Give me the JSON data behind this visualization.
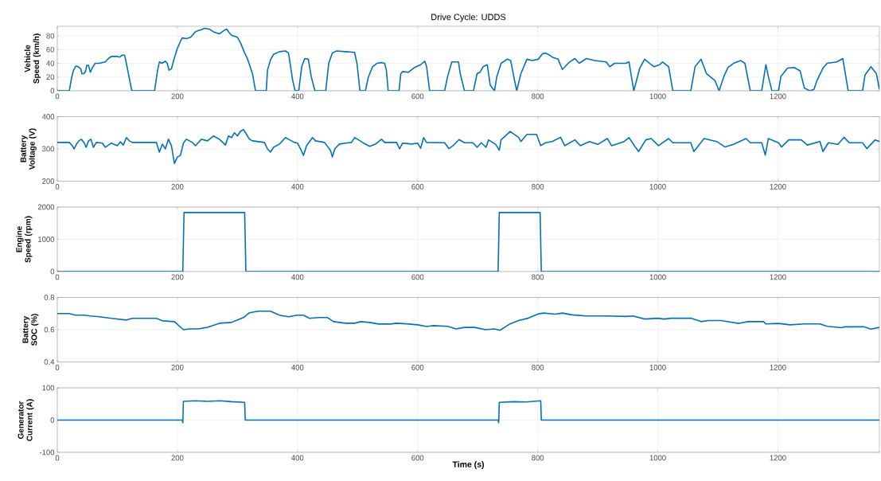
{
  "chart_data": [
    {
      "type": "line",
      "title": "Drive Cycle: UDDS",
      "ylabel": "Vehicle Speed (km/h)",
      "color": "#0072bd",
      "grid": true,
      "xlim": [
        0,
        1369
      ],
      "ylim": [
        0,
        94
      ],
      "xticks": [
        0,
        200,
        400,
        600,
        800,
        1000,
        1200
      ],
      "yticks": [
        0,
        20,
        40,
        60,
        80
      ],
      "x": [
        0,
        20,
        24,
        27,
        31,
        35,
        39,
        41,
        44,
        47,
        49,
        52,
        55,
        58,
        63,
        70,
        80,
        85,
        90,
        100,
        104,
        108,
        112,
        115,
        124,
        162,
        167,
        170,
        174,
        180,
        183,
        186,
        190,
        195,
        200,
        205,
        208,
        215,
        222,
        230,
        235,
        240,
        245,
        253,
        260,
        270,
        278,
        282,
        286,
        290,
        300,
        305,
        312,
        316,
        320,
        325,
        330,
        348,
        350,
        355,
        360,
        370,
        380,
        385,
        392,
        396,
        402,
        407,
        412,
        418,
        423,
        429,
        447,
        452,
        458,
        465,
        480,
        495,
        499,
        504,
        513,
        518,
        525,
        532,
        540,
        545,
        548,
        551,
        569,
        572,
        575,
        585,
        595,
        605,
        612,
        615,
        620,
        645,
        650,
        657,
        668,
        671,
        678,
        693,
        699,
        704,
        709,
        716,
        721,
        728,
        732,
        739,
        749,
        755,
        761,
        765,
        772,
        782,
        791,
        801,
        808,
        813,
        820,
        824,
        834,
        841,
        853,
        862,
        869,
        881,
        895,
        914,
        920,
        928,
        947,
        952,
        960,
        970,
        978,
        989,
        994,
        1003,
        1008,
        1018,
        1025,
        1055,
        1062,
        1072,
        1081,
        1095,
        1102,
        1110,
        1117,
        1126,
        1138,
        1145,
        1154,
        1173,
        1180,
        1184,
        1190,
        1201,
        1205,
        1216,
        1227,
        1237,
        1244,
        1253,
        1260,
        1265,
        1275,
        1282,
        1298,
        1308,
        1317,
        1341,
        1345,
        1355,
        1364,
        1369
      ],
      "values": [
        0,
        0,
        20,
        30,
        36,
        35,
        32,
        25,
        25,
        28,
        37,
        37,
        27,
        33,
        40,
        40,
        42,
        47,
        50,
        50,
        49,
        52,
        52,
        40,
        0,
        0,
        30,
        42,
        40,
        43,
        40,
        30,
        32,
        48,
        62,
        72,
        77,
        76,
        78,
        86,
        88,
        89,
        91,
        90,
        86,
        83,
        88,
        90,
        85,
        81,
        78,
        70,
        55,
        48,
        38,
        25,
        0,
        0,
        30,
        45,
        53,
        57,
        58,
        55,
        15,
        0,
        0,
        35,
        47,
        46,
        20,
        0,
        0,
        40,
        55,
        58,
        57,
        56,
        40,
        0,
        0,
        20,
        35,
        40,
        41,
        40,
        30,
        0,
        0,
        25,
        28,
        27,
        34,
        38,
        43,
        35,
        0,
        0,
        21,
        42,
        42,
        25,
        0,
        0,
        25,
        27,
        35,
        38,
        8,
        0,
        21,
        40,
        46,
        44,
        17,
        0,
        25,
        46,
        44,
        46,
        54,
        55,
        52,
        49,
        46,
        31,
        42,
        47,
        40,
        47,
        44,
        42,
        35,
        40,
        40,
        42,
        0,
        33,
        46,
        38,
        35,
        38,
        42,
        35,
        0,
        0,
        35,
        46,
        25,
        15,
        0,
        21,
        34,
        40,
        44,
        40,
        0,
        0,
        38,
        21,
        0,
        0,
        21,
        33,
        34,
        29,
        4,
        0,
        2,
        15,
        33,
        40,
        42,
        47,
        0,
        0,
        23,
        35,
        25,
        2
      ]
    },
    {
      "type": "line",
      "ylabel": "Battery Voltage (V)",
      "color": "#0072bd",
      "grid": true,
      "xlim": [
        0,
        1369
      ],
      "ylim": [
        200,
        400
      ],
      "xticks": [
        0,
        200,
        400,
        600,
        800,
        1000,
        1200
      ],
      "yticks": [
        200,
        300,
        400
      ],
      "x": [
        0,
        20,
        25,
        28,
        32,
        36,
        40,
        45,
        48,
        52,
        56,
        60,
        65,
        75,
        80,
        90,
        100,
        105,
        110,
        115,
        120,
        125,
        165,
        170,
        175,
        180,
        185,
        190,
        195,
        200,
        205,
        210,
        215,
        225,
        230,
        240,
        250,
        260,
        270,
        280,
        285,
        290,
        295,
        300,
        305,
        310,
        315,
        320,
        325,
        345,
        350,
        355,
        360,
        370,
        380,
        385,
        395,
        400,
        405,
        410,
        415,
        425,
        430,
        445,
        455,
        458,
        462,
        470,
        480,
        490,
        495,
        500,
        510,
        520,
        530,
        540,
        545,
        565,
        570,
        575,
        590,
        600,
        605,
        610,
        615,
        645,
        652,
        659,
        669,
        678,
        692,
        699,
        706,
        714,
        718,
        730,
        736,
        739,
        754,
        768,
        772,
        782,
        798,
        805,
        813,
        824,
        838,
        845,
        862,
        871,
        886,
        900,
        916,
        923,
        944,
        952,
        961,
        968,
        980,
        989,
        1001,
        1018,
        1025,
        1055,
        1060,
        1077,
        1098,
        1112,
        1126,
        1147,
        1154,
        1173,
        1179,
        1184,
        1201,
        1206,
        1218,
        1239,
        1249,
        1270,
        1275,
        1284,
        1300,
        1310,
        1319,
        1341,
        1348,
        1362,
        1369
      ],
      "values": [
        320,
        320,
        310,
        300,
        315,
        325,
        330,
        318,
        305,
        325,
        330,
        305,
        320,
        318,
        305,
        318,
        310,
        322,
        312,
        335,
        325,
        320,
        320,
        290,
        315,
        300,
        330,
        310,
        255,
        275,
        280,
        318,
        330,
        320,
        310,
        330,
        325,
        340,
        330,
        312,
        340,
        335,
        350,
        340,
        355,
        360,
        345,
        330,
        325,
        320,
        300,
        290,
        305,
        315,
        335,
        330,
        320,
        318,
        300,
        280,
        310,
        335,
        325,
        320,
        295,
        275,
        300,
        315,
        318,
        320,
        335,
        330,
        318,
        308,
        315,
        330,
        320,
        320,
        300,
        318,
        315,
        318,
        302,
        335,
        320,
        319,
        301,
        310,
        329,
        319,
        319,
        305,
        319,
        305,
        328,
        314,
        296,
        328,
        354,
        336,
        323,
        345,
        345,
        310,
        319,
        323,
        336,
        310,
        328,
        310,
        323,
        314,
        332,
        310,
        323,
        335,
        310,
        292,
        328,
        332,
        310,
        332,
        319,
        319,
        292,
        332,
        323,
        306,
        314,
        332,
        319,
        319,
        281,
        332,
        319,
        306,
        328,
        328,
        312,
        323,
        292,
        319,
        314,
        336,
        319,
        319,
        301,
        328,
        323
      ]
    },
    {
      "type": "line",
      "ylabel": "Engine Speed (rpm)",
      "color": "#0072bd",
      "grid": true,
      "xlim": [
        0,
        1369
      ],
      "ylim": [
        0,
        2000
      ],
      "xticks": [
        0,
        200,
        400,
        600,
        800,
        1000,
        1200
      ],
      "yticks": [
        0,
        1000,
        2000
      ],
      "x": [
        0,
        209,
        211,
        312,
        314,
        734,
        736,
        804,
        806,
        1369
      ],
      "values": [
        0,
        0,
        1830,
        1830,
        0,
        0,
        1830,
        1830,
        0,
        0
      ]
    },
    {
      "type": "line",
      "ylabel": "Battery SOC (%)",
      "color": "#0072bd",
      "grid": true,
      "xlim": [
        0,
        1369
      ],
      "ylim": [
        0.4,
        0.8
      ],
      "xticks": [
        0,
        200,
        400,
        600,
        800,
        1000,
        1200
      ],
      "yticks": [
        0.4,
        0.6,
        0.8
      ],
      "x": [
        0,
        20,
        30,
        45,
        55,
        70,
        90,
        115,
        125,
        165,
        175,
        195,
        210,
        220,
        235,
        250,
        270,
        290,
        300,
        310,
        320,
        335,
        355,
        370,
        385,
        400,
        410,
        420,
        435,
        450,
        460,
        480,
        495,
        505,
        520,
        535,
        555,
        565,
        585,
        600,
        615,
        625,
        650,
        664,
        678,
        695,
        713,
        728,
        737,
        754,
        768,
        784,
        801,
        810,
        829,
        841,
        857,
        881,
        914,
        947,
        959,
        978,
        999,
        1011,
        1022,
        1055,
        1072,
        1084,
        1105,
        1135,
        1150,
        1176,
        1180,
        1201,
        1220,
        1244,
        1270,
        1282,
        1306,
        1312,
        1343,
        1355,
        1369
      ],
      "values": [
        0.7,
        0.7,
        0.69,
        0.69,
        0.685,
        0.68,
        0.67,
        0.66,
        0.67,
        0.67,
        0.655,
        0.65,
        0.6,
        0.605,
        0.605,
        0.615,
        0.64,
        0.645,
        0.66,
        0.675,
        0.705,
        0.715,
        0.715,
        0.69,
        0.68,
        0.69,
        0.69,
        0.67,
        0.675,
        0.675,
        0.65,
        0.64,
        0.64,
        0.65,
        0.645,
        0.635,
        0.635,
        0.64,
        0.635,
        0.63,
        0.62,
        0.625,
        0.621,
        0.605,
        0.614,
        0.614,
        0.6,
        0.605,
        0.596,
        0.636,
        0.657,
        0.671,
        0.698,
        0.703,
        0.696,
        0.703,
        0.692,
        0.685,
        0.685,
        0.682,
        0.685,
        0.666,
        0.671,
        0.666,
        0.671,
        0.671,
        0.65,
        0.657,
        0.657,
        0.639,
        0.65,
        0.65,
        0.636,
        0.639,
        0.63,
        0.636,
        0.636,
        0.621,
        0.612,
        0.618,
        0.618,
        0.604,
        0.614
      ]
    },
    {
      "type": "line",
      "ylabel": "Generator Current (A)",
      "xlabel": "Time (s)",
      "color": "#0072bd",
      "grid": true,
      "xlim": [
        0,
        1369
      ],
      "ylim": [
        -100,
        100
      ],
      "xticks": [
        0,
        200,
        400,
        600,
        800,
        1000,
        1200
      ],
      "yticks": [
        -100,
        0,
        100
      ],
      "x": [
        0,
        208,
        209,
        210,
        230,
        250,
        270,
        290,
        312,
        313,
        734,
        735,
        736,
        760,
        780,
        805,
        806,
        1369
      ],
      "values": [
        0,
        0,
        -8,
        58,
        60,
        58,
        60,
        57,
        55,
        0,
        0,
        -8,
        55,
        57,
        56,
        60,
        0,
        0
      ]
    }
  ]
}
